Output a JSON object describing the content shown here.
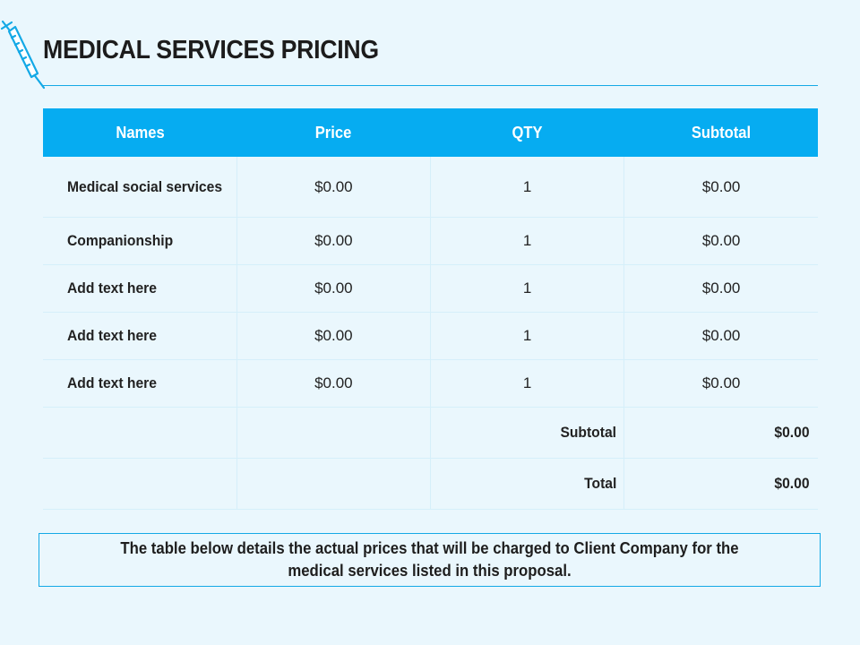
{
  "page": {
    "title": "MEDICAL SERVICES PRICING",
    "accent_color": "#06acf1",
    "icon": "syringe-icon"
  },
  "table": {
    "headers": [
      "Names",
      "Price",
      "QTY",
      "Subtotal"
    ],
    "rows": [
      {
        "name": "Medical social services",
        "price": "$0.00",
        "qty": "1",
        "subtotal": "$0.00"
      },
      {
        "name": "Companionship",
        "price": "$0.00",
        "qty": "1",
        "subtotal": "$0.00"
      },
      {
        "name": "Add text here",
        "price": "$0.00",
        "qty": "1",
        "subtotal": "$0.00"
      },
      {
        "name": "Add text here",
        "price": "$0.00",
        "qty": "1",
        "subtotal": "$0.00"
      },
      {
        "name": "Add text here",
        "price": "$0.00",
        "qty": "1",
        "subtotal": "$0.00"
      }
    ],
    "summary": {
      "subtotal_label": "Subtotal",
      "subtotal_value": "$0.00",
      "total_label": "Total",
      "total_value": "$0.00"
    }
  },
  "note": "The table below details the actual prices that will be charged to Client Company for the medical services listed in this proposal."
}
